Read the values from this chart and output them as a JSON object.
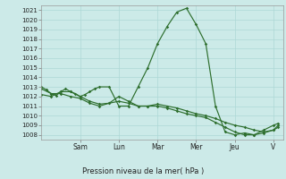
{
  "title": "Pression niveau de la mer( hPa )",
  "background_color": "#cceae8",
  "grid_color": "#add8d6",
  "line_color": "#2d6e2d",
  "ylim": [
    1007.5,
    1021.5
  ],
  "yticks": [
    1008,
    1009,
    1010,
    1011,
    1012,
    1013,
    1014,
    1015,
    1016,
    1017,
    1018,
    1019,
    1020,
    1021
  ],
  "day_labels": [
    "Sam",
    "Lun",
    "Mar",
    "Mer",
    "Jeu",
    "V"
  ],
  "day_positions": [
    4,
    8,
    12,
    16,
    20,
    24
  ],
  "xlim": [
    0,
    25
  ],
  "series1_x": [
    0,
    0.5,
    1,
    1.5,
    2,
    2.5,
    3,
    3.5,
    4,
    4.5,
    5,
    5.5,
    6,
    7,
    8,
    9,
    10,
    11,
    12,
    13,
    14,
    15,
    16,
    17,
    18,
    19,
    20,
    21,
    22,
    23,
    24,
    24.5
  ],
  "series1_y": [
    1013.0,
    1012.7,
    1012.3,
    1012.1,
    1012.5,
    1012.8,
    1012.5,
    1012.3,
    1012.0,
    1012.2,
    1012.5,
    1012.8,
    1013.0,
    1013.0,
    1011.0,
    1011.0,
    1013.0,
    1015.0,
    1017.5,
    1019.3,
    1020.8,
    1021.2,
    1019.5,
    1017.5,
    1011.0,
    1008.3,
    1008.0,
    1008.2,
    1008.0,
    1008.5,
    1009.0,
    1009.2
  ],
  "series2_x": [
    0,
    1,
    2,
    3,
    4,
    5,
    6,
    7,
    8,
    9,
    10,
    11,
    12,
    13,
    14,
    15,
    16,
    17,
    18,
    19,
    20,
    21,
    22,
    23,
    24,
    24.5
  ],
  "series2_y": [
    1012.2,
    1012.0,
    1012.5,
    1012.5,
    1012.0,
    1011.5,
    1011.2,
    1011.3,
    1011.5,
    1011.3,
    1011.0,
    1011.0,
    1011.2,
    1011.0,
    1010.8,
    1010.5,
    1010.2,
    1010.0,
    1009.7,
    1009.3,
    1009.0,
    1008.8,
    1008.5,
    1008.3,
    1008.5,
    1008.8
  ],
  "series3_x": [
    0,
    1,
    2,
    3,
    4,
    5,
    6,
    7,
    8,
    9,
    10,
    11,
    12,
    13,
    14,
    15,
    16,
    17,
    18,
    19,
    20,
    21,
    22,
    23,
    24,
    24.5
  ],
  "series3_y": [
    1012.8,
    1012.3,
    1012.3,
    1012.0,
    1011.8,
    1011.3,
    1011.0,
    1011.3,
    1012.0,
    1011.5,
    1011.0,
    1011.0,
    1011.0,
    1010.8,
    1010.5,
    1010.2,
    1010.0,
    1009.8,
    1009.3,
    1008.8,
    1008.3,
    1008.0,
    1008.0,
    1008.2,
    1008.5,
    1009.0
  ]
}
